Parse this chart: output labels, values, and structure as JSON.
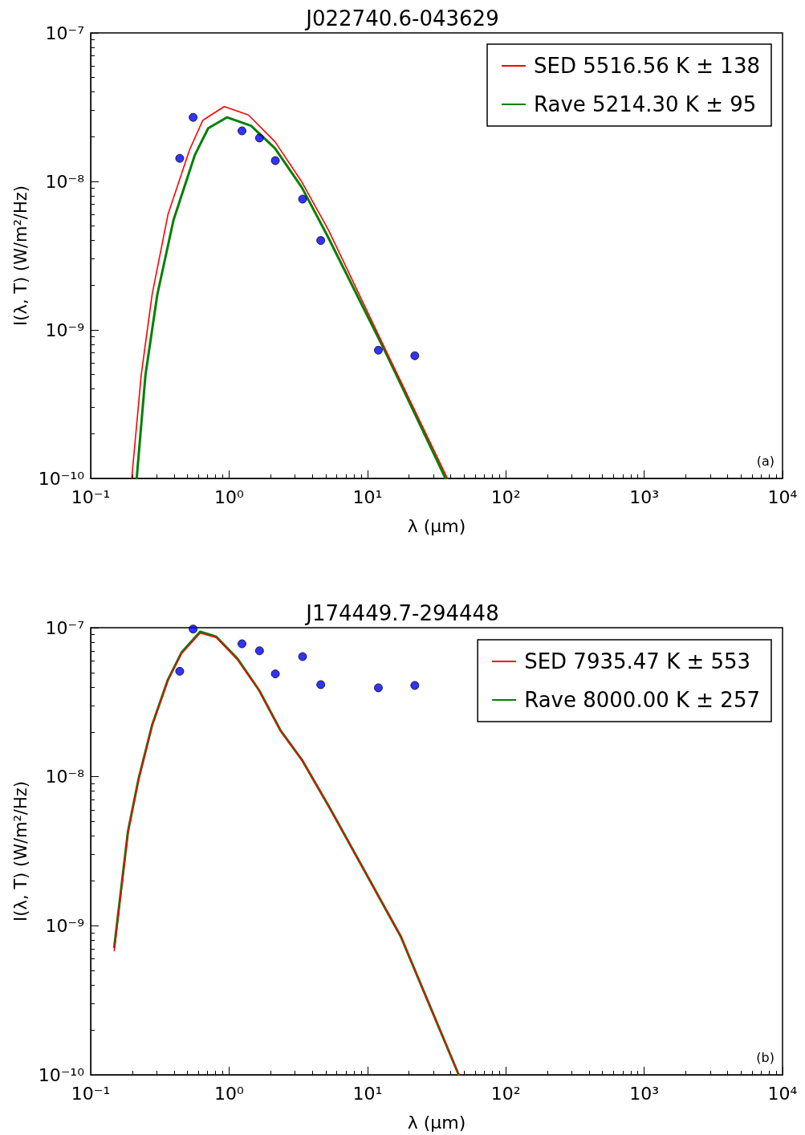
{
  "chart_data": [
    {
      "type": "line",
      "title": "J022740.6-043629",
      "xlabel": "λ (μm)",
      "ylabel": "I(λ, T) (W/m²/Hz)",
      "log": "xy",
      "grid": false,
      "legend": "top right",
      "annotations": [
        "(a)"
      ],
      "xlim": [
        0.1,
        10000
      ],
      "ylim": [
        1e-10,
        1e-07
      ],
      "xticks": [
        {
          "value": 0.1,
          "label": "10⁻¹"
        },
        {
          "value": 1,
          "label": "10⁰"
        },
        {
          "value": 10,
          "label": "10¹"
        },
        {
          "value": 100,
          "label": "10²"
        },
        {
          "value": 1000,
          "label": "10³"
        },
        {
          "value": 10000,
          "label": "10⁴"
        }
      ],
      "yticks": [
        {
          "value": 1e-10,
          "label": "10⁻¹⁰"
        },
        {
          "value": 1e-09,
          "label": "10⁻⁹"
        },
        {
          "value": 1e-08,
          "label": "10⁻⁸"
        },
        {
          "value": 1e-07,
          "label": "10⁻⁷"
        }
      ],
      "series": [
        {
          "name": "SED 5516.56 K ± 138",
          "color": "#ff0000",
          "marker": "none",
          "x": [
            0.198,
            0.232,
            0.278,
            0.362,
            0.518,
            0.646,
            0.923,
            1.38,
            2.15,
            3.36,
            5.23,
            13.3,
            37.9
          ],
          "values": [
            1e-10,
            5e-10,
            1.73e-09,
            6e-09,
            1.63e-08,
            2.58e-08,
            3.19e-08,
            2.8e-08,
            1.85e-08,
            9.9e-09,
            4.7e-09,
            7.6e-10,
            1e-10
          ]
        },
        {
          "name": "Rave 5214.30 K ± 95",
          "color": "#008000",
          "marker": "none",
          "x": [
            0.215,
            0.249,
            0.303,
            0.397,
            0.565,
            0.707,
            0.965,
            1.44,
            2.15,
            3.36,
            5.12,
            13.3,
            36.7
          ],
          "values": [
            1e-10,
            5e-10,
            1.73e-09,
            5.5e-09,
            1.5e-08,
            2.28e-08,
            2.7e-08,
            2.37e-08,
            1.67e-08,
            9.1e-09,
            4.33e-09,
            7.3e-10,
            1e-10
          ]
        },
        {
          "type": "scatter",
          "color": "#0000ff",
          "marker": "circle",
          "x": [
            0.44,
            0.55,
            1.24,
            1.66,
            2.16,
            3.4,
            4.6,
            12,
            22
          ],
          "values": [
            1.43e-08,
            2.7e-08,
            2.19e-08,
            1.96e-08,
            1.38e-08,
            7.6e-09,
            4e-09,
            7.3e-10,
            6.7e-10
          ]
        }
      ]
    },
    {
      "type": "line",
      "title": "J174449.7-294448",
      "xlabel": "λ (μm)",
      "ylabel": "I(λ, T) (W/m²/Hz)",
      "log": "xy",
      "grid": false,
      "legend": "top right",
      "annotations": [
        "(b)"
      ],
      "xlim": [
        0.1,
        10000
      ],
      "ylim": [
        1e-10,
        1e-07
      ],
      "xticks": [
        {
          "value": 0.1,
          "label": "10⁻¹"
        },
        {
          "value": 1,
          "label": "10⁰"
        },
        {
          "value": 10,
          "label": "10¹"
        },
        {
          "value": 100,
          "label": "10²"
        },
        {
          "value": 1000,
          "label": "10³"
        },
        {
          "value": 10000,
          "label": "10⁴"
        }
      ],
      "yticks": [
        {
          "value": 1e-10,
          "label": "10⁻¹⁰"
        },
        {
          "value": 1e-09,
          "label": "10⁻⁹"
        },
        {
          "value": 1e-08,
          "label": "10⁻⁸"
        },
        {
          "value": 1e-07,
          "label": "10⁻⁷"
        }
      ],
      "series": [
        {
          "name": "SED 7935.47 K ± 553",
          "color": "#ff0000",
          "marker": "none",
          "x": [
            0.148,
            0.186,
            0.222,
            0.278,
            0.362,
            0.453,
            0.618,
            0.808,
            1.15,
            1.65,
            2.35,
            3.36,
            5.23,
            17.4,
            45.7
          ],
          "values": [
            6.8e-10,
            4.2e-09,
            9.6e-09,
            2.2e-08,
            4.45e-08,
            6.7e-08,
            9.2e-08,
            8.6e-08,
            6.1e-08,
            3.8e-08,
            2.05e-08,
            1.3e-08,
            6.4e-09,
            8.5e-10,
            1e-10
          ]
        },
        {
          "name": "Rave 8000.00 K ± 257",
          "color": "#008000",
          "marker": "none",
          "x": [
            0.148,
            0.186,
            0.222,
            0.278,
            0.362,
            0.453,
            0.618,
            0.808,
            1.15,
            1.65,
            2.35,
            3.36,
            5.23,
            17.4,
            45.7
          ],
          "values": [
            7.2e-10,
            4.3e-09,
            9.7e-09,
            2.22e-08,
            4.49e-08,
            6.8e-08,
            9.4e-08,
            8.7e-08,
            6.2e-08,
            3.8e-08,
            2.05e-08,
            1.3e-08,
            6.4e-09,
            8.5e-10,
            1e-10
          ]
        },
        {
          "type": "scatter",
          "color": "#0000ff",
          "marker": "circle",
          "x": [
            0.44,
            0.55,
            1.24,
            1.66,
            2.16,
            3.4,
            4.6,
            12,
            22
          ],
          "values": [
            5.1e-08,
            9.8e-08,
            7.8e-08,
            7e-08,
            4.9e-08,
            6.4e-08,
            4.15e-08,
            3.95e-08,
            4.1e-08
          ]
        }
      ]
    }
  ]
}
